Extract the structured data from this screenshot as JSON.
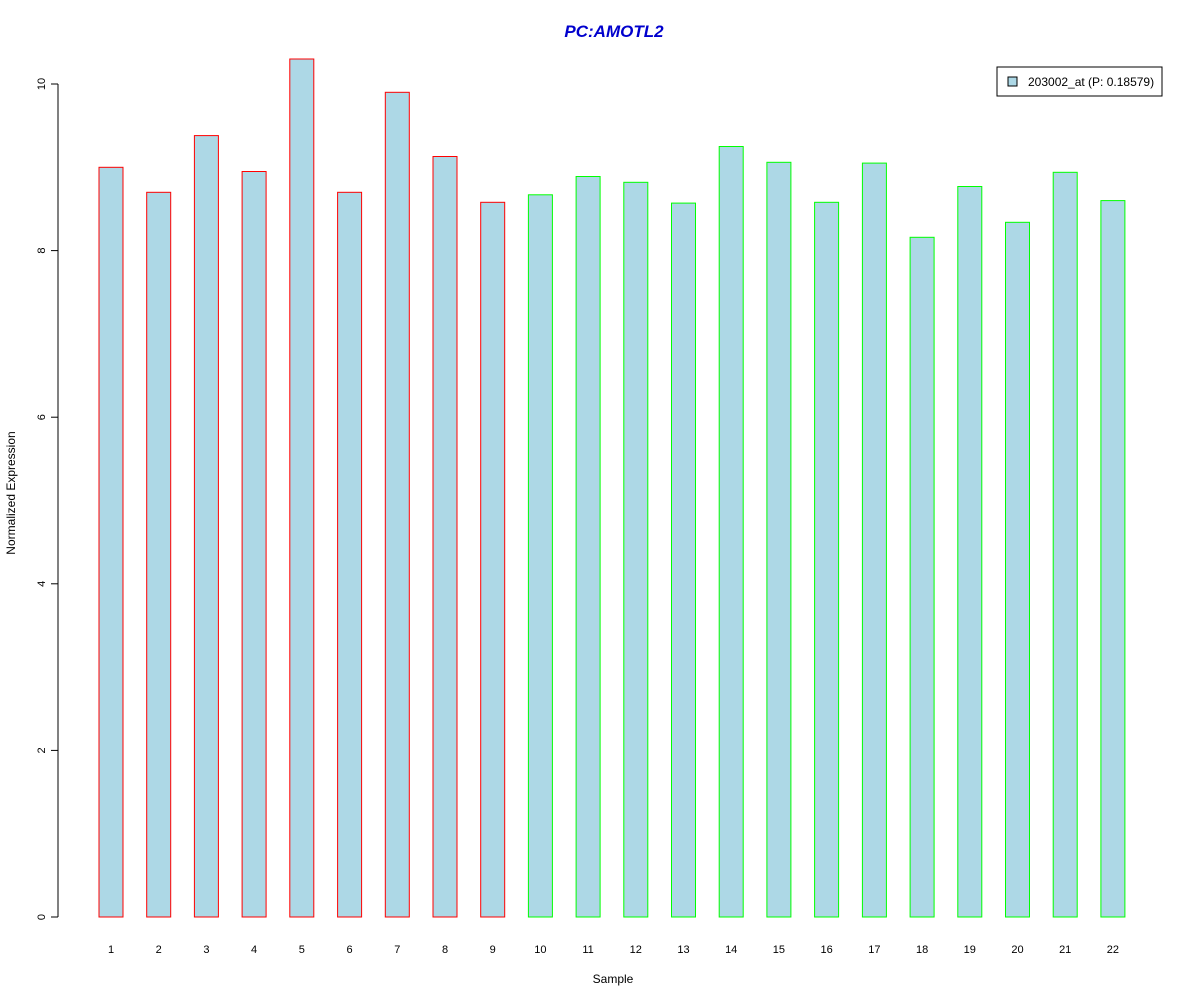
{
  "chart_data": {
    "type": "bar",
    "title": "PC:AMOTL2",
    "xlabel": "Sample",
    "ylabel": "Normalized Expression",
    "categories": [
      "1",
      "2",
      "3",
      "4",
      "5",
      "6",
      "7",
      "8",
      "9",
      "10",
      "11",
      "12",
      "13",
      "14",
      "15",
      "16",
      "17",
      "18",
      "19",
      "20",
      "21",
      "22"
    ],
    "values": [
      9.0,
      8.7,
      9.38,
      8.95,
      10.3,
      8.7,
      9.9,
      9.13,
      8.58,
      8.67,
      8.89,
      8.82,
      8.57,
      9.25,
      9.06,
      8.58,
      9.05,
      8.16,
      8.77,
      8.34,
      8.94,
      8.6
    ],
    "groups": [
      "red",
      "red",
      "red",
      "red",
      "red",
      "red",
      "red",
      "red",
      "red",
      "green",
      "green",
      "green",
      "green",
      "green",
      "green",
      "green",
      "green",
      "green",
      "green",
      "green",
      "green",
      "green"
    ],
    "ylim": [
      0,
      10
    ],
    "yticks": [
      0,
      2,
      4,
      6,
      8,
      10
    ],
    "legend": {
      "label": "203002_at (P: 0.18579)",
      "position": "top-right"
    },
    "colors": {
      "bar_fill": "#add8e6",
      "red_border": "#ff0000",
      "green_border": "#00ff00",
      "title": "#0000cd"
    }
  }
}
